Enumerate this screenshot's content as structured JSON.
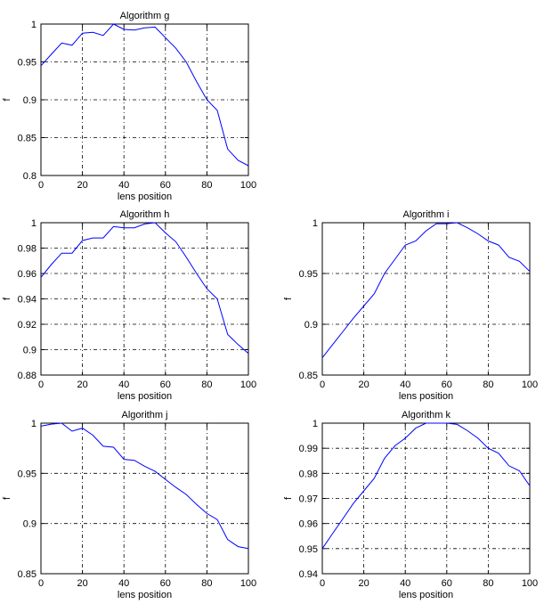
{
  "chart_data": [
    {
      "type": "line",
      "title": "Algorithm g",
      "xlabel": "lens position",
      "ylabel": "f",
      "xlim": [
        0,
        100
      ],
      "ylim": [
        0.8,
        1
      ],
      "grid": true,
      "xticks": [
        0,
        20,
        40,
        60,
        80,
        100
      ],
      "xtick_labels": [
        "0",
        "20",
        "40",
        "60",
        "80",
        "100"
      ],
      "yticks": [
        0.8,
        0.85,
        0.9,
        0.95,
        1
      ],
      "ytick_labels": [
        "0.8",
        "0.85",
        "0.9",
        "0.95",
        "1"
      ],
      "x": [
        0,
        5,
        10,
        15,
        20,
        25,
        30,
        35,
        40,
        45,
        50,
        55,
        60,
        65,
        70,
        75,
        80,
        85,
        90,
        95,
        100
      ],
      "y": [
        0.945,
        0.96,
        0.975,
        0.972,
        0.988,
        0.989,
        0.985,
        1.0,
        0.993,
        0.992,
        0.995,
        0.996,
        0.982,
        0.968,
        0.95,
        0.924,
        0.9,
        0.886,
        0.835,
        0.82,
        0.813
      ],
      "color": "#0000ff"
    },
    {
      "type": "line",
      "title": "Algorithm h",
      "xlabel": "lens position",
      "ylabel": "f",
      "xlim": [
        0,
        100
      ],
      "ylim": [
        0.88,
        1
      ],
      "grid": true,
      "xticks": [
        0,
        20,
        40,
        60,
        80,
        100
      ],
      "xtick_labels": [
        "0",
        "20",
        "40",
        "60",
        "80",
        "100"
      ],
      "yticks": [
        0.88,
        0.9,
        0.92,
        0.94,
        0.96,
        0.98,
        1
      ],
      "ytick_labels": [
        "0.88",
        "0.9",
        "0.92",
        "0.94",
        "0.96",
        "0.98",
        "1"
      ],
      "x": [
        0,
        5,
        10,
        15,
        20,
        25,
        30,
        35,
        40,
        45,
        50,
        55,
        60,
        65,
        70,
        75,
        80,
        85,
        90,
        95,
        100
      ],
      "y": [
        0.957,
        0.967,
        0.976,
        0.976,
        0.986,
        0.988,
        0.988,
        0.997,
        0.996,
        0.996,
        0.999,
        1.0,
        0.992,
        0.985,
        0.973,
        0.96,
        0.948,
        0.94,
        0.912,
        0.904,
        0.897
      ],
      "color": "#0000ff"
    },
    {
      "type": "line",
      "title": "Algorithm i",
      "xlabel": "lens position",
      "ylabel": "f",
      "xlim": [
        0,
        100
      ],
      "ylim": [
        0.85,
        1
      ],
      "grid": true,
      "xticks": [
        0,
        20,
        40,
        60,
        80,
        100
      ],
      "xtick_labels": [
        "0",
        "20",
        "40",
        "60",
        "80",
        "100"
      ],
      "yticks": [
        0.85,
        0.9,
        0.95,
        1
      ],
      "ytick_labels": [
        "0.85",
        "0.9",
        "0.95",
        "1"
      ],
      "x": [
        0,
        5,
        10,
        15,
        20,
        25,
        30,
        35,
        40,
        45,
        50,
        55,
        60,
        65,
        70,
        75,
        80,
        85,
        90,
        95,
        100
      ],
      "y": [
        0.867,
        0.88,
        0.893,
        0.906,
        0.918,
        0.93,
        0.95,
        0.964,
        0.978,
        0.982,
        0.992,
        0.999,
        0.999,
        1.0,
        0.995,
        0.989,
        0.982,
        0.978,
        0.966,
        0.962,
        0.952
      ],
      "color": "#0000ff"
    },
    {
      "type": "line",
      "title": "Algorithm j",
      "xlabel": "lens position",
      "ylabel": "f",
      "xlim": [
        0,
        100
      ],
      "ylim": [
        0.85,
        1
      ],
      "grid": true,
      "xticks": [
        0,
        20,
        40,
        60,
        80,
        100
      ],
      "xtick_labels": [
        "0",
        "20",
        "40",
        "60",
        "80",
        "100"
      ],
      "yticks": [
        0.85,
        0.9,
        0.95,
        1
      ],
      "ytick_labels": [
        "0.85",
        "0.9",
        "0.95",
        "1"
      ],
      "x": [
        0,
        5,
        10,
        15,
        20,
        25,
        30,
        35,
        40,
        45,
        50,
        55,
        60,
        65,
        70,
        75,
        80,
        85,
        90,
        95,
        100
      ],
      "y": [
        0.997,
        0.999,
        1.0,
        0.992,
        0.995,
        0.988,
        0.977,
        0.976,
        0.964,
        0.963,
        0.957,
        0.952,
        0.944,
        0.936,
        0.929,
        0.919,
        0.91,
        0.904,
        0.884,
        0.877,
        0.875
      ],
      "color": "#0000ff"
    },
    {
      "type": "line",
      "title": "Algorithm k",
      "xlabel": "lens position",
      "ylabel": "f",
      "xlim": [
        0,
        100
      ],
      "ylim": [
        0.94,
        1
      ],
      "grid": true,
      "xticks": [
        0,
        20,
        40,
        60,
        80,
        100
      ],
      "xtick_labels": [
        "0",
        "20",
        "40",
        "60",
        "80",
        "100"
      ],
      "yticks": [
        0.94,
        0.95,
        0.96,
        0.97,
        0.98,
        0.99,
        1
      ],
      "ytick_labels": [
        "0.94",
        "0.95",
        "0.96",
        "0.97",
        "0.98",
        "0.99",
        "1"
      ],
      "x": [
        0,
        5,
        10,
        15,
        20,
        25,
        30,
        35,
        40,
        45,
        50,
        55,
        60,
        65,
        70,
        75,
        80,
        85,
        90,
        95,
        100
      ],
      "y": [
        0.95,
        0.956,
        0.962,
        0.968,
        0.973,
        0.978,
        0.986,
        0.991,
        0.994,
        0.998,
        1.0,
        1.0,
        1.0,
        0.9995,
        0.997,
        0.994,
        0.99,
        0.988,
        0.983,
        0.981,
        0.975
      ],
      "color": "#0000ff"
    }
  ]
}
